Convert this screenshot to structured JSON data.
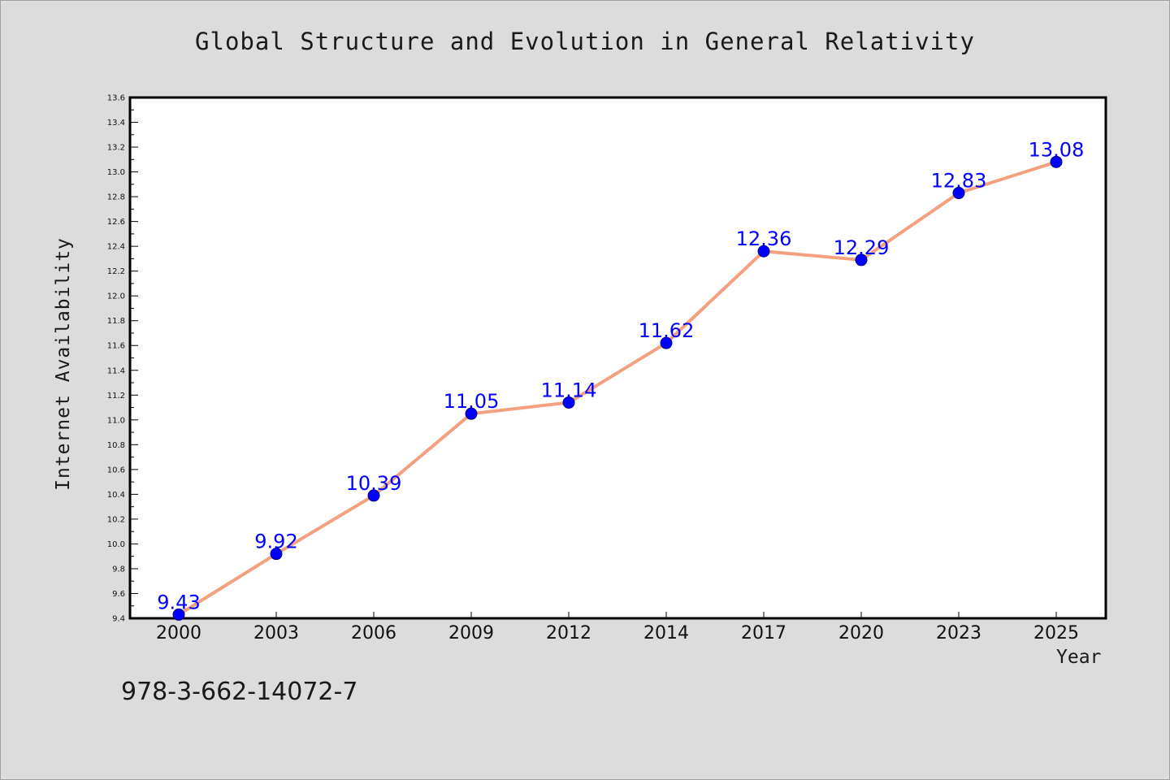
{
  "chart_data": {
    "type": "line",
    "title": "Global Structure and Evolution in General Relativity",
    "xlabel": "Year",
    "ylabel": "Internet Availability",
    "categories": [
      "2000",
      "2003",
      "2006",
      "2009",
      "2012",
      "2014",
      "2017",
      "2020",
      "2023",
      "2025"
    ],
    "series": [
      {
        "values": [
          9.43,
          9.92,
          10.39,
          11.05,
          11.14,
          11.62,
          12.36,
          12.29,
          12.83,
          13.08
        ],
        "line_color": "#f4a07f",
        "marker_color": "#0000ff",
        "label_color": "#0000ff"
      }
    ],
    "ylim": [
      9.4,
      13.6
    ],
    "yticks": [
      "9.4",
      "9.6",
      "9.8",
      "10.0",
      "10.2",
      "10.4",
      "10.6",
      "10.8",
      "11.0",
      "11.2",
      "11.4",
      "11.6",
      "11.8",
      "12.0",
      "12.2",
      "12.4",
      "12.6",
      "12.8",
      "13.0",
      "13.2",
      "13.4",
      "13.6"
    ],
    "grid": false,
    "data_labels": true
  },
  "footer_text": "978-3-662-14072-7",
  "colors": {
    "background": "#dcdcdc",
    "plot_background": "#ffffff"
  }
}
